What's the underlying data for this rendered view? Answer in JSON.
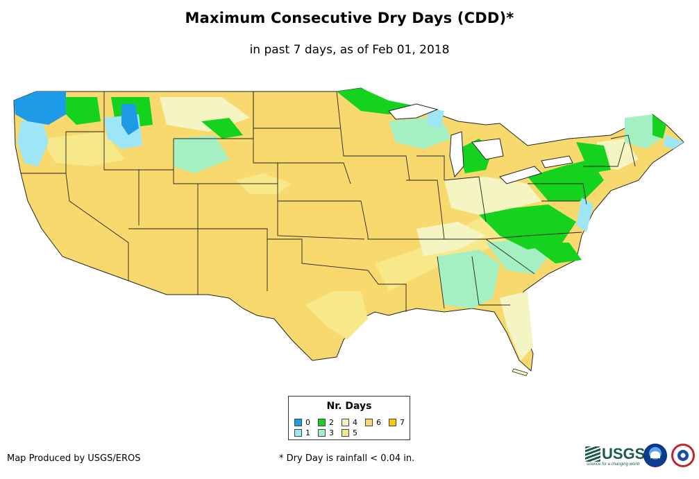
{
  "title": "Maximum Consecutive Dry Days (CDD)*",
  "subtitle": "in past 7 days, as of Feb 01, 2018",
  "legend": {
    "title": "Nr. Days",
    "items": [
      {
        "label": "0",
        "color": "#1e9be6"
      },
      {
        "label": "1",
        "color": "#9ee6f5"
      },
      {
        "label": "2",
        "color": "#14d21e"
      },
      {
        "label": "3",
        "color": "#a5f0c3"
      },
      {
        "label": "4",
        "color": "#f5f5c3"
      },
      {
        "label": "5",
        "color": "#f7e989"
      },
      {
        "label": "6",
        "color": "#f7d96e"
      },
      {
        "label": "7",
        "color": "#f5c800"
      }
    ]
  },
  "footer": {
    "credit": "Map Produced by USGS/EROS",
    "note": "* Dry Day is rainfall < 0.04 in."
  },
  "logos": [
    {
      "name": "usgs-logo",
      "text": "USGS",
      "tagline": "science for a changing world"
    },
    {
      "name": "noaa-logo",
      "text": "NOAA"
    },
    {
      "name": "nws-logo",
      "text": "NATIONAL WEATHER SERVICE"
    }
  ],
  "map": {
    "base_color": "#f7d96e",
    "border_color": "#222222"
  }
}
